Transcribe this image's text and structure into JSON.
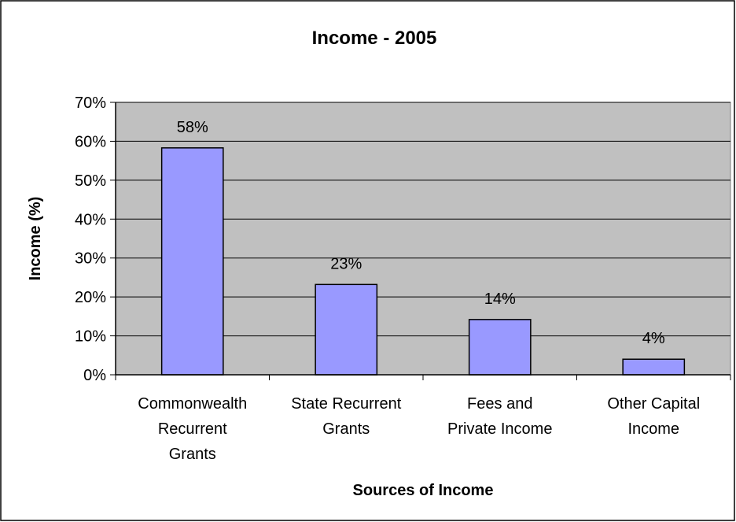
{
  "chart_data": {
    "type": "bar",
    "title": "Income - 2005",
    "xlabel": "Sources of Income",
    "ylabel": "Income (%)",
    "categories": [
      [
        "Commonwealth",
        "Recurrent",
        "Grants"
      ],
      [
        "State Recurrent",
        "Grants"
      ],
      [
        "Fees and",
        "Private Income"
      ],
      [
        "Other Capital",
        "Income"
      ]
    ],
    "values": [
      58.3,
      23.2,
      14.2,
      4.0
    ],
    "data_labels": [
      "58%",
      "23%",
      "14%",
      "4%"
    ],
    "yticks": [
      "0%",
      "10%",
      "20%",
      "30%",
      "40%",
      "50%",
      "60%",
      "70%"
    ],
    "ylim": [
      0,
      70
    ],
    "grid": true,
    "legend": "none",
    "colors": {
      "bar_fill": "#9999ff",
      "bar_stroke": "#000000",
      "plot_background": "#c0c0c0",
      "gridline": "#000000"
    }
  }
}
